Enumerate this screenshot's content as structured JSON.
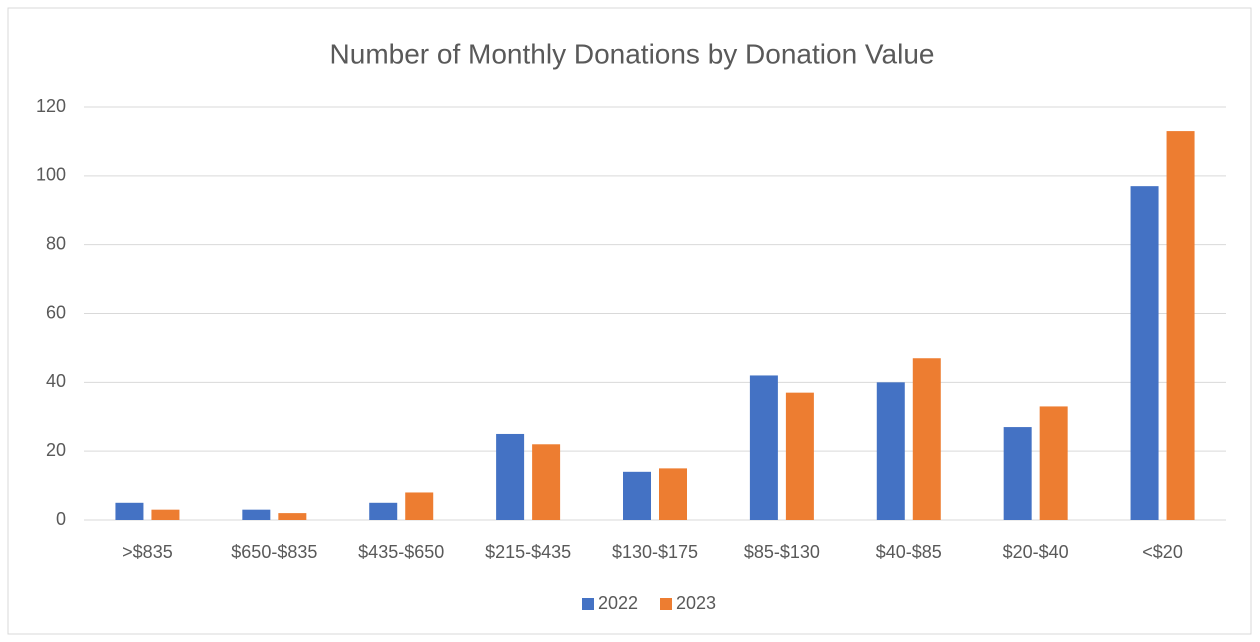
{
  "chart_data": {
    "type": "bar",
    "title": "Number of Monthly Donations by Donation Value",
    "categories": [
      ">$835",
      "$650-$835",
      "$435-$650",
      "$215-$435",
      "$130-$175",
      "$85-$130",
      "$40-$85",
      "$20-$40",
      "<$20"
    ],
    "series": [
      {
        "name": "2022",
        "color": "#4472c4",
        "values": [
          5,
          3,
          5,
          25,
          14,
          42,
          40,
          27,
          97
        ]
      },
      {
        "name": "2023",
        "color": "#ed7d31",
        "values": [
          3,
          2,
          8,
          22,
          15,
          37,
          47,
          33,
          113
        ]
      }
    ],
    "ylim": [
      0,
      120
    ],
    "yticks": [
      0,
      20,
      40,
      60,
      80,
      100,
      120
    ],
    "grid": true,
    "legend": "bottom"
  }
}
